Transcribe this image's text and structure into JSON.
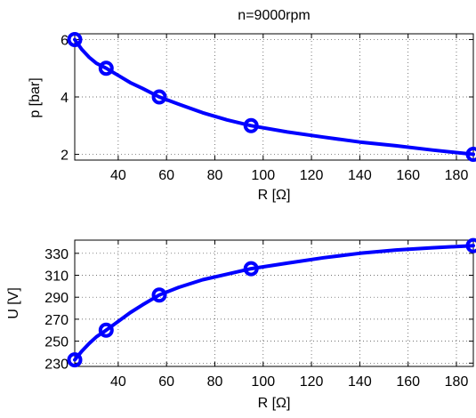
{
  "chart_data": [
    {
      "type": "line",
      "title": "n=9000rpm",
      "xlabel": "R [Ω]",
      "ylabel": "p [bar]",
      "xlim": [
        22,
        187
      ],
      "ylim": [
        1.8,
        6.2
      ],
      "xticks": [
        40,
        60,
        80,
        100,
        120,
        140,
        160,
        180
      ],
      "yticks": [
        2,
        4,
        6
      ],
      "grid": true,
      "color": "#0000ff",
      "series": [
        {
          "markers": [
            [
              22,
              6.0
            ],
            [
              35,
              5.0
            ],
            [
              57,
              4.0
            ],
            [
              95,
              3.0
            ],
            [
              187,
              2.0
            ]
          ],
          "curve": [
            [
              22,
              6.0
            ],
            [
              25,
              5.65
            ],
            [
              28,
              5.38
            ],
            [
              31,
              5.17
            ],
            [
              35,
              5.0
            ],
            [
              40,
              4.75
            ],
            [
              45,
              4.5
            ],
            [
              50,
              4.3
            ],
            [
              57,
              4.0
            ],
            [
              65,
              3.75
            ],
            [
              75,
              3.45
            ],
            [
              85,
              3.2
            ],
            [
              95,
              3.0
            ],
            [
              110,
              2.78
            ],
            [
              125,
              2.6
            ],
            [
              140,
              2.43
            ],
            [
              155,
              2.3
            ],
            [
              170,
              2.15
            ],
            [
              187,
              2.0
            ]
          ]
        }
      ]
    },
    {
      "type": "line",
      "title": "",
      "xlabel": "R [Ω]",
      "ylabel": "U [V]",
      "xlim": [
        22,
        187
      ],
      "ylim": [
        227,
        342
      ],
      "xticks": [
        40,
        60,
        80,
        100,
        120,
        140,
        160,
        180
      ],
      "yticks": [
        230,
        250,
        270,
        290,
        310,
        330
      ],
      "grid": true,
      "color": "#0000ff",
      "series": [
        {
          "markers": [
            [
              22,
              233
            ],
            [
              35,
              260
            ],
            [
              57,
              292
            ],
            [
              95,
              316
            ],
            [
              187,
              337
            ]
          ],
          "curve": [
            [
              22,
              233
            ],
            [
              25,
              241
            ],
            [
              28,
              248
            ],
            [
              31,
              254
            ],
            [
              35,
              260
            ],
            [
              40,
              268
            ],
            [
              45,
              276
            ],
            [
              50,
              283
            ],
            [
              57,
              292
            ],
            [
              65,
              299
            ],
            [
              75,
              306
            ],
            [
              85,
              311
            ],
            [
              95,
              316
            ],
            [
              110,
              321
            ],
            [
              125,
              326
            ],
            [
              140,
              330
            ],
            [
              155,
              333
            ],
            [
              170,
              335
            ],
            [
              187,
              337
            ]
          ]
        }
      ]
    }
  ]
}
